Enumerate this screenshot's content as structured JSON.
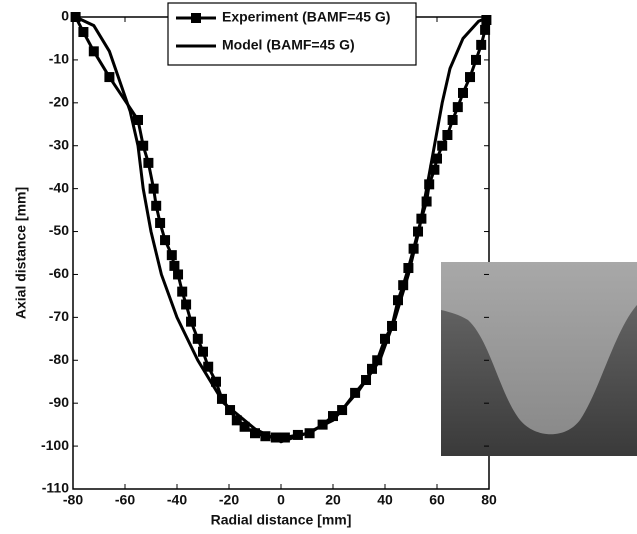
{
  "chart_data": {
    "type": "line",
    "xlabel": "Radial distance [mm]",
    "ylabel": "Axial distance [mm]",
    "xlim": [
      -80,
      80
    ],
    "xticks": [
      -80,
      -60,
      -40,
      -20,
      0,
      20,
      40,
      60,
      80
    ],
    "ylim": [
      -110,
      0
    ],
    "yticks": [
      -110,
      -100,
      -90,
      -80,
      -70,
      -60,
      -50,
      -40,
      -30,
      -20,
      -10,
      0
    ],
    "legend": "top-center",
    "series": [
      {
        "name": "Experiment (BAMF=45 G)",
        "color": "#000000",
        "marker": "square",
        "x": [
          -79,
          -76,
          -72,
          -66,
          -55,
          -53,
          -51,
          -49,
          -48,
          -46.5,
          -44.6,
          -42,
          -41,
          -39.6,
          -38,
          -36.5,
          -34.6,
          -32,
          -30,
          -28,
          -25,
          -22.7,
          -19.6,
          -17,
          -14,
          -10,
          -6,
          -2,
          1.5,
          6.5,
          11,
          16,
          20,
          23.5,
          28.5,
          32.7,
          35,
          37,
          40,
          42.7,
          45,
          47,
          49,
          51,
          52.7,
          54,
          56,
          57,
          59,
          60,
          62,
          64,
          66,
          68,
          70,
          72.7,
          75,
          77,
          78.5,
          79
        ],
        "values": [
          0,
          -3.5,
          -8,
          -14,
          -24,
          -30,
          -34,
          -40,
          -44,
          -48,
          -52,
          -55.5,
          -58,
          -60,
          -64,
          -67,
          -71,
          -75,
          -78,
          -81.5,
          -85,
          -89,
          -91.6,
          -94,
          -95.5,
          -97,
          -97.7,
          -98,
          -98,
          -97.4,
          -97,
          -95,
          -93,
          -91.6,
          -87.6,
          -84.6,
          -82,
          -80,
          -75,
          -72,
          -66,
          -62.5,
          -58.5,
          -54,
          -50,
          -47,
          -43,
          -39,
          -35.6,
          -33,
          -30,
          -27.5,
          -24,
          -21,
          -17.7,
          -14,
          -10,
          -6.5,
          -3,
          -0.7
        ]
      },
      {
        "name": "Model (BAMF=45 G)",
        "color": "#000000",
        "x": [
          -79,
          -72,
          -66,
          -62,
          -58,
          -55,
          -53,
          -50,
          -46,
          -40,
          -32,
          -22,
          -10,
          0,
          10,
          20,
          30,
          38,
          44,
          49,
          53,
          56,
          59,
          62,
          65,
          70,
          76,
          80
        ],
        "values": [
          0,
          -2,
          -8,
          -15,
          -22,
          -30,
          -40,
          -50,
          -60,
          -70,
          -80,
          -90,
          -96,
          -99,
          -97,
          -94,
          -87,
          -80,
          -70,
          -60,
          -50,
          -40,
          -30,
          -20,
          -12,
          -5,
          -1,
          0
        ]
      }
    ]
  }
}
